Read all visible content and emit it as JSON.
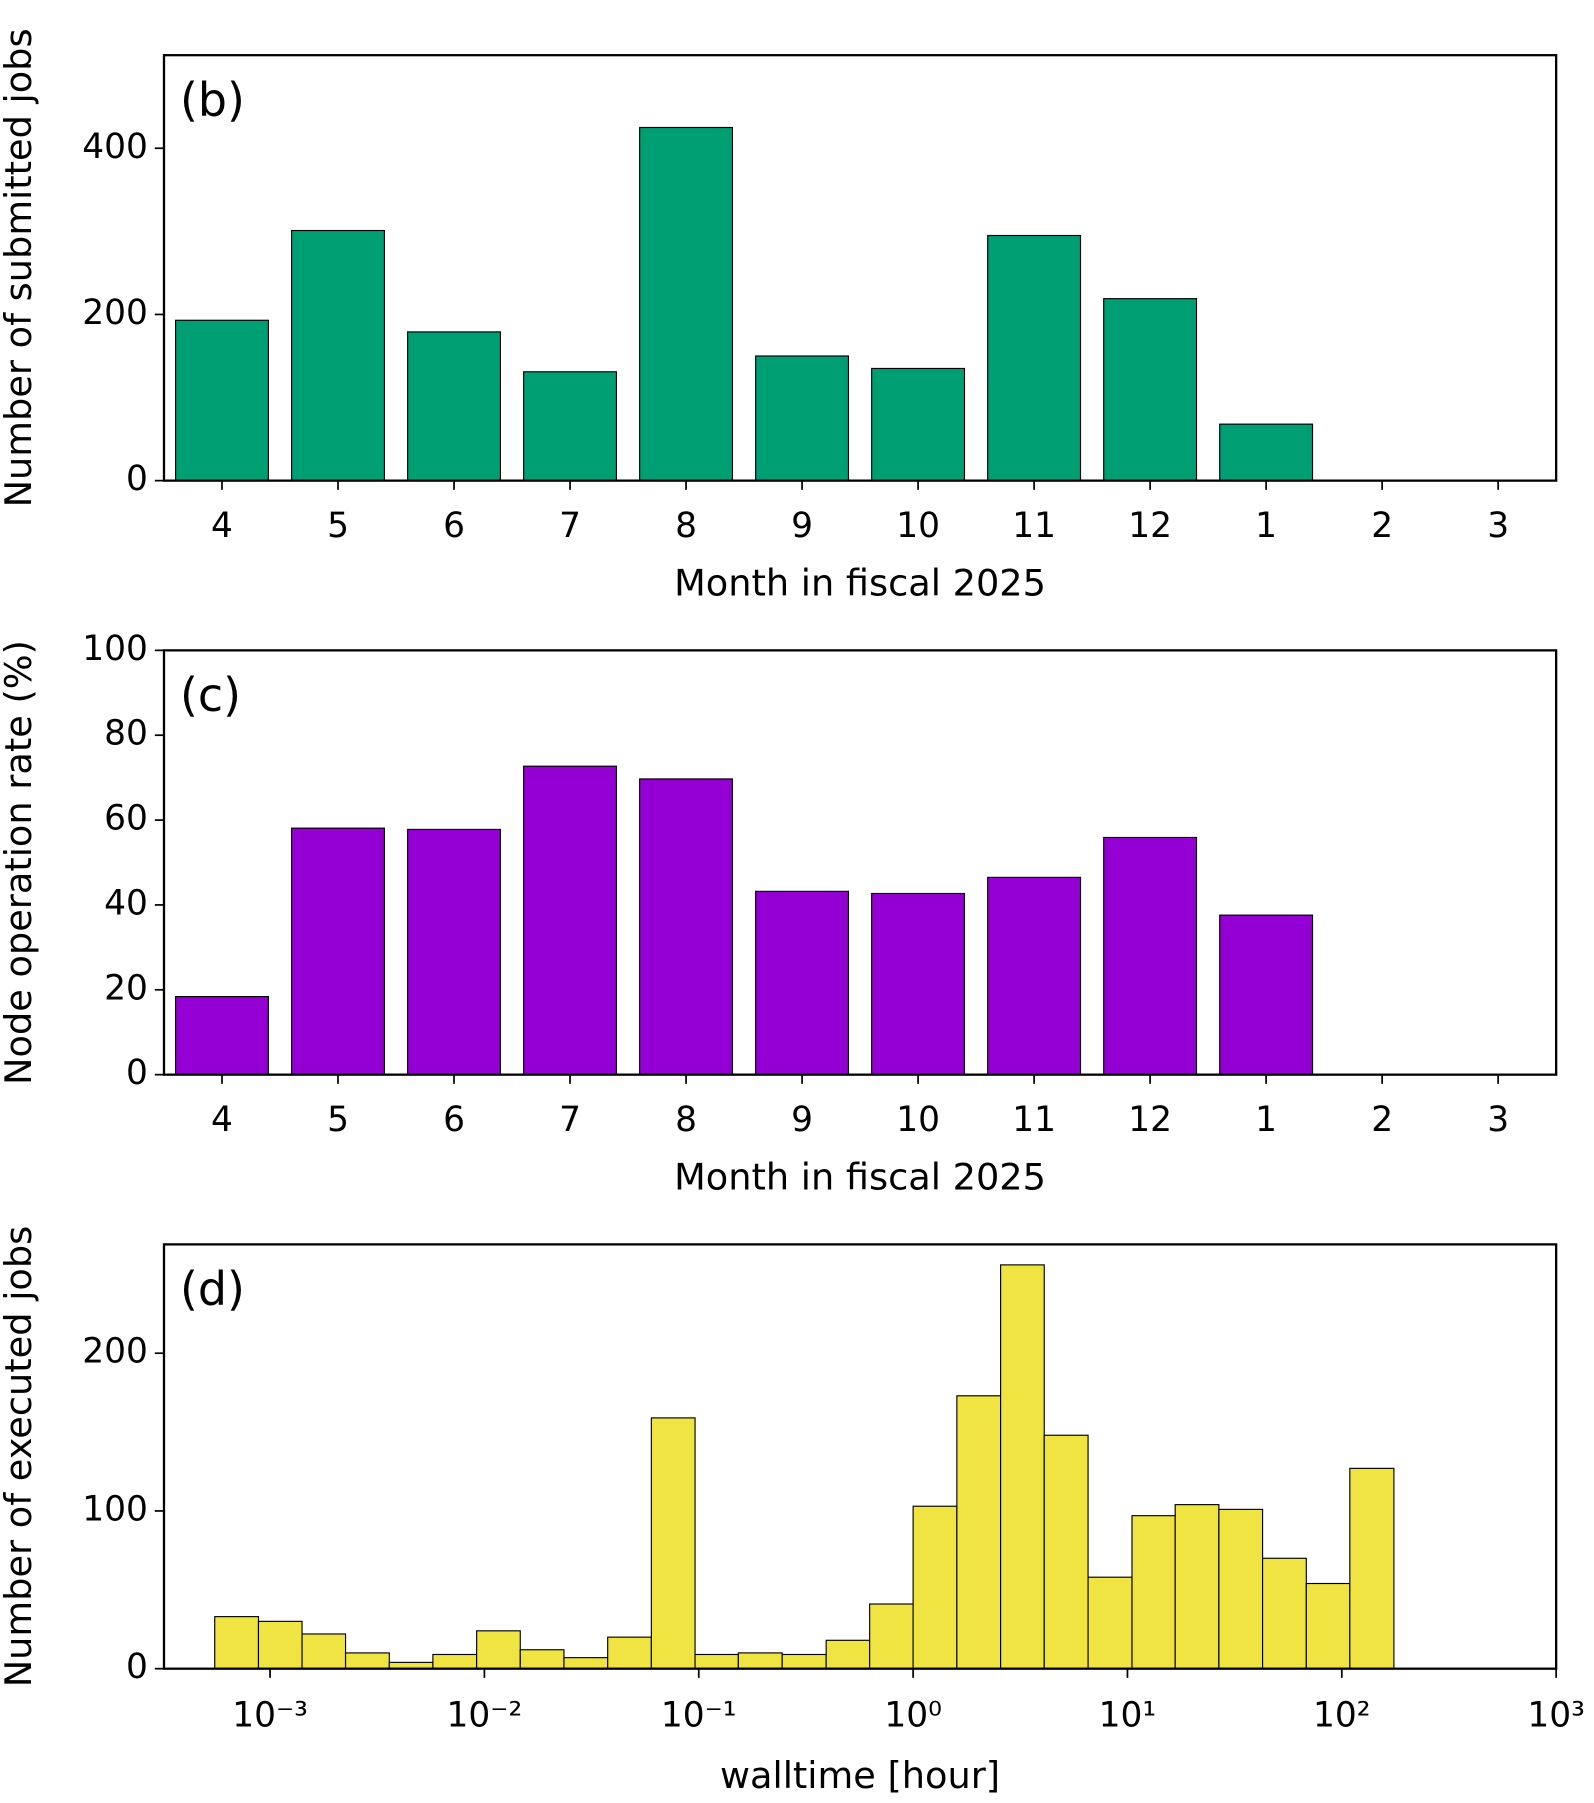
{
  "chart_data": [
    {
      "type": "bar",
      "panel_label": "(b)",
      "xlabel": "Month in fiscal 2025",
      "ylabel": "Number of submitted jobs",
      "categories": [
        "4",
        "5",
        "6",
        "7",
        "8",
        "9",
        "10",
        "11",
        "12",
        "1",
        "2",
        "3"
      ],
      "values": [
        193,
        301,
        179,
        131,
        425,
        150,
        135,
        295,
        219,
        68,
        null,
        null
      ],
      "color": "#009e73",
      "ylim": [
        0,
        512
      ],
      "yticks": [
        0,
        200,
        400
      ]
    },
    {
      "type": "bar",
      "panel_label": "(c)",
      "xlabel": "Month in fiscal 2025",
      "ylabel": "Node operation rate (%)",
      "categories": [
        "4",
        "5",
        "6",
        "7",
        "8",
        "9",
        "10",
        "11",
        "12",
        "1",
        "2",
        "3"
      ],
      "values": [
        18.4,
        58.1,
        57.8,
        72.7,
        69.7,
        43.2,
        42.7,
        46.5,
        55.9,
        37.6,
        null,
        null
      ],
      "color": "#9400d3",
      "ylim": [
        0,
        100
      ],
      "yticks": [
        0,
        20,
        40,
        60,
        80,
        100
      ]
    },
    {
      "type": "histogram",
      "panel_label": "(d)",
      "xlabel": "walltime [hour]",
      "ylabel": "Number of executed jobs",
      "bins": [
        0.000552,
        0.000883,
        0.00141,
        0.00225,
        0.0036,
        0.00575,
        0.0092,
        0.0147,
        0.0235,
        0.0376,
        0.0601,
        0.0961,
        0.153,
        0.245,
        0.393,
        0.627,
        1.0,
        1.6,
        2.56,
        4.09,
        6.55,
        10.5,
        16.7,
        26.7,
        42.7,
        68.3,
        109,
        175
      ],
      "values": [
        33,
        30,
        22,
        10,
        4,
        9,
        24,
        12,
        7,
        20,
        159,
        9,
        10,
        9,
        18,
        41,
        103,
        173,
        256,
        148,
        58,
        97,
        104,
        101,
        70,
        54,
        127
      ],
      "color": "#f0e442",
      "log_x": true,
      "xlim": [
        0.00032,
        1000
      ],
      "xticks": [
        {
          "value": 0.001,
          "label": "10⁻³"
        },
        {
          "value": 0.01,
          "label": "10⁻²"
        },
        {
          "value": 0.1,
          "label": "10⁻¹"
        },
        {
          "value": 1,
          "label": "10⁰"
        },
        {
          "value": 10,
          "label": "10¹"
        },
        {
          "value": 100,
          "label": "10²"
        },
        {
          "value": 1000,
          "label": "10³"
        }
      ],
      "ylim": [
        0,
        269
      ],
      "yticks": [
        0,
        100,
        200
      ]
    }
  ]
}
